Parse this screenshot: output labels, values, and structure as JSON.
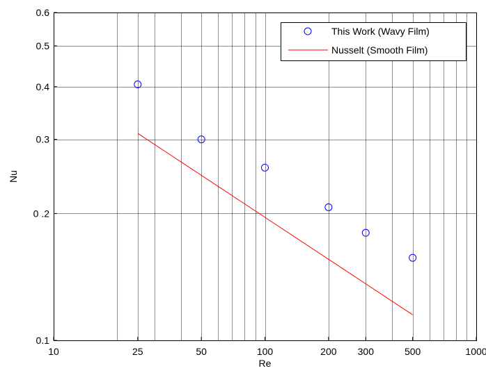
{
  "chart_data": {
    "type": "scatter",
    "xscale": "log",
    "yscale": "log",
    "xlim": [
      10,
      1000
    ],
    "ylim": [
      0.1,
      0.6
    ],
    "xlabel": "Re",
    "ylabel": "Nu",
    "grid": true,
    "legend_position": "top-right",
    "x_ticks": [
      {
        "value": 10,
        "label": "10"
      },
      {
        "value": 25,
        "label": "25"
      },
      {
        "value": 50,
        "label": "50"
      },
      {
        "value": 100,
        "label": "100"
      },
      {
        "value": 200,
        "label": "200"
      },
      {
        "value": 300,
        "label": "300"
      },
      {
        "value": 500,
        "label": "500"
      },
      {
        "value": 1000,
        "label": "1000"
      }
    ],
    "y_ticks": [
      {
        "value": 0.1,
        "label": "0.1"
      },
      {
        "value": 0.2,
        "label": "0 .2"
      },
      {
        "value": 0.3,
        "label": "0.3"
      },
      {
        "value": 0.4,
        "label": "0.4"
      },
      {
        "value": 0.5,
        "label": "0.5"
      },
      {
        "value": 0.6,
        "label": "0.6"
      }
    ],
    "series": [
      {
        "name": "This Work (Wavy Film)",
        "kind": "markers",
        "marker": "circle",
        "color": "#0000ff",
        "x": [
          25,
          50,
          100,
          200,
          300,
          500
        ],
        "y": [
          0.405,
          0.3,
          0.257,
          0.207,
          0.18,
          0.157
        ]
      },
      {
        "name": "Nusselt (Smooth Film)",
        "kind": "line",
        "color": "#ff0000",
        "x": [
          25,
          500
        ],
        "y": [
          0.31,
          0.115
        ]
      }
    ]
  }
}
